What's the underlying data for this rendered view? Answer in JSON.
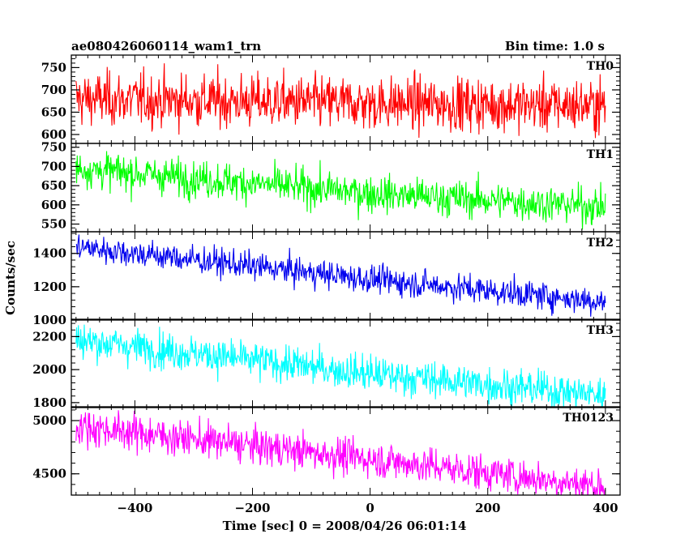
{
  "header": {
    "title": "ae080426060114_wam1_trn",
    "bin_time": "Bin time: 1.0 s"
  },
  "chart_data": {
    "type": "line",
    "xlabel": "Time [sec] 0 = 2008/04/26 06:01:14",
    "ylabel": "Counts/sec",
    "xlim": [
      -508,
      425
    ],
    "x_ticks": [
      -400,
      -200,
      0,
      200,
      400
    ],
    "x_range": [
      -500,
      400
    ],
    "bin_time_s": 1.0,
    "panels": [
      {
        "name": "TH0",
        "color": "#ff0000",
        "ylim": [
          580,
          778
        ],
        "y_ticks": [
          600,
          650,
          700,
          750
        ],
        "trend": [
          [
            -500,
            680
          ],
          [
            0,
            670
          ],
          [
            400,
            665
          ]
        ],
        "noise_sd": 30
      },
      {
        "name": "TH1",
        "color": "#00ff00",
        "ylim": [
          530,
          760
        ],
        "y_ticks": [
          550,
          600,
          650,
          700,
          750
        ],
        "trend": [
          [
            -500,
            695
          ],
          [
            0,
            630
          ],
          [
            400,
            595
          ]
        ],
        "noise_sd": 24
      },
      {
        "name": "TH2",
        "color": "#0000ee",
        "ylim": [
          1000,
          1530
        ],
        "y_ticks": [
          1000,
          1200,
          1400
        ],
        "trend": [
          [
            -500,
            1440
          ],
          [
            0,
            1245
          ],
          [
            400,
            1110
          ]
        ],
        "noise_sd": 42
      },
      {
        "name": "TH3",
        "color": "#00ffff",
        "ylim": [
          1770,
          2305
        ],
        "y_ticks": [
          1800,
          2000,
          2200
        ],
        "trend": [
          [
            -500,
            2180
          ],
          [
            0,
            1975
          ],
          [
            400,
            1845
          ]
        ],
        "noise_sd": 55
      },
      {
        "name": "TH0123",
        "color": "#ff00ff",
        "ylim": [
          4300,
          5130
        ],
        "y_ticks": [
          4500,
          5000
        ],
        "trend": [
          [
            -500,
            4950
          ],
          [
            0,
            4640
          ],
          [
            400,
            4380
          ]
        ],
        "noise_sd": 85
      }
    ]
  }
}
